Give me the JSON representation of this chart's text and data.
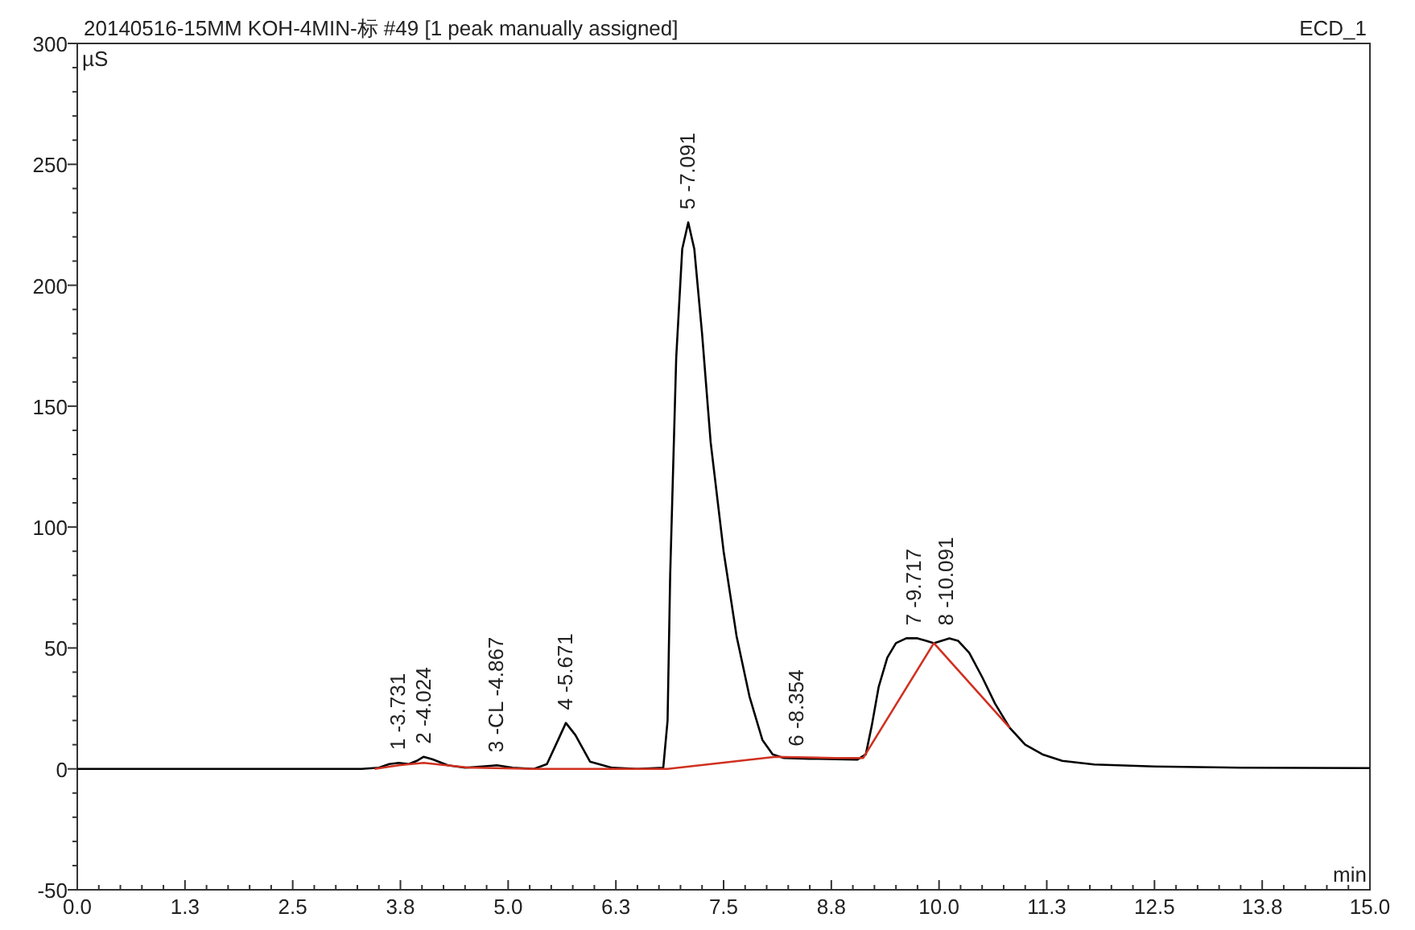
{
  "chart_data": {
    "type": "line",
    "title": "20140516-15MM KOH-4MIN-标 #49 [1 peak manually assigned]",
    "subtitle": "ECD_1",
    "xlabel": "min",
    "ylabel": "µS",
    "xlim": [
      0,
      15
    ],
    "ylim": [
      -50,
      300
    ],
    "xticks": [
      {
        "value": 0,
        "label": "0.0"
      },
      {
        "value": 1.25,
        "label": "1.3"
      },
      2.5,
      {
        "value": 3.75,
        "label": "3.8"
      },
      {
        "value": 5,
        "label": "5.0"
      },
      {
        "value": 6.25,
        "label": "6.3"
      },
      7.5,
      {
        "value": 8.75,
        "label": "8.8"
      },
      {
        "value": 10,
        "label": "10.0"
      },
      {
        "value": 11.25,
        "label": "11.3"
      },
      12.5,
      {
        "value": 13.75,
        "label": "13.8"
      },
      {
        "value": 15,
        "label": "15.0"
      },
      {
        "value": 0.25,
        "label": null
      },
      {
        "value": 0.5,
        "label": null
      },
      {
        "value": 0.75,
        "label": null
      },
      {
        "value": 1,
        "label": null
      },
      {
        "value": 1.5,
        "label": null
      },
      {
        "value": 1.75,
        "label": null
      },
      {
        "value": 2,
        "label": null
      },
      {
        "value": 2.25,
        "label": null
      },
      {
        "value": 2.75,
        "label": null
      },
      {
        "value": 3,
        "label": null
      },
      {
        "value": 3.25,
        "label": null
      },
      {
        "value": 3.5,
        "label": null
      },
      {
        "value": 4,
        "label": null
      },
      {
        "value": 4.25,
        "label": null
      },
      {
        "value": 4.5,
        "label": null
      },
      {
        "value": 4.75,
        "label": null
      },
      {
        "value": 5.25,
        "label": null
      },
      {
        "value": 5.5,
        "label": null
      },
      {
        "value": 5.75,
        "label": null
      },
      {
        "value": 6,
        "label": null
      },
      {
        "value": 6.5,
        "label": null
      },
      {
        "value": 6.75,
        "label": null
      },
      {
        "value": 7,
        "label": null
      },
      {
        "value": 7.25,
        "label": null
      },
      {
        "value": 7.75,
        "label": null
      },
      {
        "value": 8,
        "label": null
      },
      {
        "value": 8.25,
        "label": null
      },
      {
        "value": 8.5,
        "label": null
      },
      {
        "value": 9,
        "label": null
      },
      {
        "value": 9.25,
        "label": null
      },
      {
        "value": 9.5,
        "label": null
      },
      {
        "value": 9.75,
        "label": null
      },
      {
        "value": 10.25,
        "label": null
      },
      {
        "value": 10.5,
        "label": null
      },
      {
        "value": 10.75,
        "label": null
      },
      {
        "value": 11,
        "label": null
      },
      {
        "value": 11.5,
        "label": null
      },
      {
        "value": 11.75,
        "label": null
      },
      {
        "value": 12,
        "label": null
      },
      {
        "value": 12.25,
        "label": null
      },
      {
        "value": 12.75,
        "label": null
      },
      {
        "value": 13,
        "label": null
      },
      {
        "value": 13.25,
        "label": null
      },
      {
        "value": 13.5,
        "label": null
      },
      {
        "value": 14,
        "label": null
      },
      {
        "value": 14.25,
        "label": null
      },
      {
        "value": 14.5,
        "label": null
      },
      {
        "value": 14.75,
        "label": null
      }
    ],
    "yticks": [
      -50,
      0,
      50,
      100,
      150,
      200,
      250,
      300,
      {
        "value": -40,
        "label": null
      },
      {
        "value": -30,
        "label": null
      },
      {
        "value": -20,
        "label": null
      },
      {
        "value": -10,
        "label": null
      },
      {
        "value": 10,
        "label": null
      },
      {
        "value": 20,
        "label": null
      },
      {
        "value": 30,
        "label": null
      },
      {
        "value": 40,
        "label": null
      },
      {
        "value": 60,
        "label": null
      },
      {
        "value": 70,
        "label": null
      },
      {
        "value": 80,
        "label": null
      },
      {
        "value": 90,
        "label": null
      },
      {
        "value": 110,
        "label": null
      },
      {
        "value": 120,
        "label": null
      },
      {
        "value": 130,
        "label": null
      },
      {
        "value": 140,
        "label": null
      },
      {
        "value": 160,
        "label": null
      },
      {
        "value": 170,
        "label": null
      },
      {
        "value": 180,
        "label": null
      },
      {
        "value": 190,
        "label": null
      },
      {
        "value": 210,
        "label": null
      },
      {
        "value": 220,
        "label": null
      },
      {
        "value": 230,
        "label": null
      },
      {
        "value": 240,
        "label": null
      },
      {
        "value": 260,
        "label": null
      },
      {
        "value": 270,
        "label": null
      },
      {
        "value": 280,
        "label": null
      },
      {
        "value": 290,
        "label": null
      }
    ],
    "series": [
      {
        "color": "#000000",
        "x": [
          0,
          3.3,
          3.5,
          3.62,
          3.73,
          3.85,
          3.95,
          4.02,
          4.12,
          4.3,
          4.5,
          4.7,
          4.87,
          5.05,
          5.3,
          5.45,
          5.58,
          5.67,
          5.78,
          5.95,
          6.2,
          6.5,
          6.8,
          6.85,
          6.88,
          6.95,
          7.02,
          7.09,
          7.16,
          7.25,
          7.35,
          7.5,
          7.65,
          7.8,
          7.95,
          8.07,
          8.2,
          8.5,
          8.8,
          9.05,
          9.15,
          9.22,
          9.3,
          9.4,
          9.5,
          9.62,
          9.75,
          9.85,
          9.94,
          10.03,
          10.12,
          10.22,
          10.35,
          10.5,
          10.65,
          10.82,
          11.0,
          11.2,
          11.43,
          11.8,
          12.5,
          13.5,
          15
        ],
        "values": [
          0,
          0,
          0.5,
          2,
          2.5,
          2,
          3.5,
          5,
          4,
          1.5,
          0.5,
          1,
          1.5,
          0.5,
          0,
          2,
          12,
          19,
          14,
          3,
          0.5,
          0,
          0.5,
          20,
          80,
          170,
          215,
          226,
          215,
          180,
          135,
          90,
          55,
          30,
          12,
          6,
          4.5,
          4.2,
          4,
          3.8,
          6,
          18,
          34,
          46,
          52,
          54,
          54,
          53,
          52,
          53,
          54,
          53,
          48,
          38,
          27,
          17,
          10,
          6,
          3.3,
          1.8,
          1,
          0.5,
          0.3
        ]
      },
      {
        "color": "#d03020",
        "x": [
          3.45,
          3.73,
          4.02,
          4.55,
          4.62,
          5.3,
          6.45,
          6.85,
          8.1,
          8.8,
          9.12,
          9.94,
          10.82
        ],
        "values": [
          0,
          1.5,
          2.5,
          0.5,
          0.5,
          0,
          0,
          0,
          5,
          4.5,
          4.5,
          52,
          17
        ]
      }
    ],
    "annotations": [
      {
        "text": "1 -3.731",
        "x": 3.731,
        "y": 2.5
      },
      {
        "text": "2 -4.024",
        "x": 4.024,
        "y": 5
      },
      {
        "text": "3 -CL -4.867",
        "x": 4.867,
        "y": 1.5
      },
      {
        "text": "4 -5.671",
        "x": 5.671,
        "y": 19
      },
      {
        "text": "5 -7.091",
        "x": 7.091,
        "y": 226
      },
      {
        "text": "6 -8.354",
        "x": 8.354,
        "y": 4
      },
      {
        "text": "7 -9.717",
        "x": 9.717,
        "y": 54
      },
      {
        "text": "8 -10.091",
        "x": 10.091,
        "y": 54
      }
    ]
  }
}
